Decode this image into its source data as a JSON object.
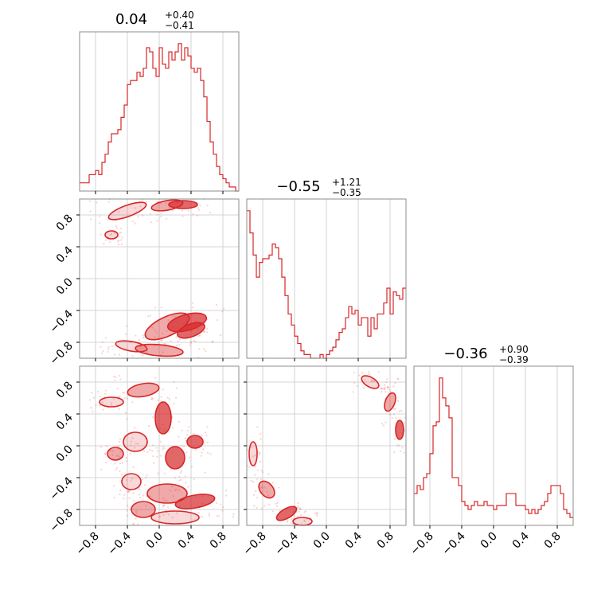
{
  "chart_data": {
    "type": "corner",
    "color": "#d62728",
    "grid": true,
    "axis_ticks": [
      "−0.8",
      "−0.4",
      "0.0",
      "0.4",
      "0.8"
    ],
    "tick_values": [
      -0.8,
      -0.4,
      0.0,
      0.4,
      0.8
    ],
    "range": [
      -1.0,
      1.0
    ],
    "parameters": [
      {
        "title_value": "0.04",
        "title_plus": "+0.40",
        "title_minus": "−0.41",
        "hist_x0": -1.0,
        "hist_bin_width": 0.04,
        "hist_counts": [
          2,
          2,
          2,
          4,
          4,
          5,
          4,
          7,
          9,
          12,
          14,
          14,
          15,
          18,
          21,
          26,
          27,
          27,
          29,
          28,
          30,
          35,
          34,
          30,
          28,
          35,
          31,
          30,
          34,
          32,
          34,
          36,
          32,
          35,
          33,
          30,
          29,
          30,
          27,
          23,
          17,
          12,
          9,
          6,
          4,
          3,
          2,
          1,
          1,
          0
        ]
      },
      {
        "title_value": "−0.55",
        "title_plus": "+1.21",
        "title_minus": "−0.35",
        "hist_x0": -1.0,
        "hist_bin_width": 0.04,
        "hist_counts": [
          40,
          34,
          28,
          22,
          26,
          27,
          27,
          28,
          31,
          30,
          27,
          22,
          17,
          12,
          9,
          6,
          4,
          2,
          1,
          1,
          0,
          0,
          0,
          1,
          0,
          1,
          2,
          3,
          5,
          7,
          8,
          11,
          14,
          12,
          13,
          9,
          11,
          11,
          6,
          11,
          8,
          12,
          12,
          15,
          19,
          12,
          18,
          17,
          16,
          19
        ]
      },
      {
        "title_value": "−0.36",
        "title_plus": "+0.90",
        "title_minus": "−0.39",
        "hist_x0": -1.0,
        "hist_bin_width": 0.04,
        "hist_counts": [
          8,
          10,
          9,
          12,
          13,
          18,
          25,
          26,
          37,
          32,
          30,
          27,
          12,
          12,
          10,
          6,
          5,
          4,
          5,
          6,
          5,
          5,
          6,
          5,
          5,
          4,
          5,
          5,
          5,
          8,
          8,
          8,
          5,
          5,
          5,
          4,
          3,
          4,
          3,
          4,
          5,
          6,
          8,
          10,
          10,
          10,
          8,
          4,
          3,
          2
        ]
      }
    ],
    "panels_2d": [
      {
        "x_param": 0,
        "y_param": 1,
        "description": "samples concentrated near y≈0.8 (x in −0.6..0.6) and y≈−0.6..−1.0 (x in −0.8..0.6)"
      },
      {
        "x_param": 0,
        "y_param": 2,
        "description": "broad multimodal spread over whole range"
      },
      {
        "x_param": 1,
        "y_param": 2,
        "description": "ring-like structure: arc from (0.4,0.9) to (1.0,0.2) and arc from (−1.0,0.2) to (−0.2,−1.0)"
      }
    ]
  }
}
